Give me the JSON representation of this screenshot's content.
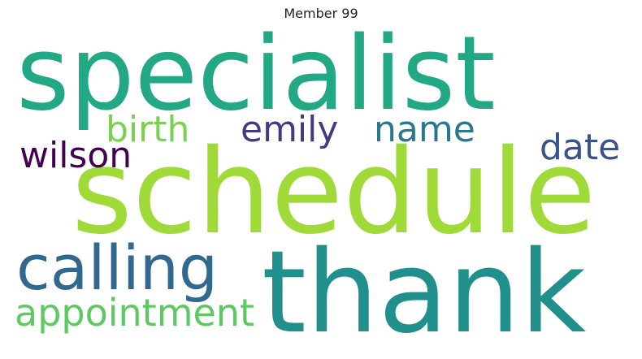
{
  "title": "Member 99",
  "words": [
    {
      "id": "specialist",
      "text": "specialist",
      "color": "#22a884"
    },
    {
      "id": "schedule",
      "text": "schedule",
      "color": "#a0da39"
    },
    {
      "id": "thank",
      "text": "thank",
      "color": "#21908d"
    },
    {
      "id": "calling",
      "text": "calling",
      "color": "#31688e"
    },
    {
      "id": "appointment",
      "text": "appointment",
      "color": "#5ec962"
    },
    {
      "id": "birth",
      "text": "birth",
      "color": "#7ad151"
    },
    {
      "id": "emily",
      "text": "emily",
      "color": "#443a83"
    },
    {
      "id": "name",
      "text": "name",
      "color": "#2a788e"
    },
    {
      "id": "wilson",
      "text": "wilson",
      "color": "#440154"
    },
    {
      "id": "date",
      "text": "date",
      "color": "#3b528b"
    }
  ]
}
